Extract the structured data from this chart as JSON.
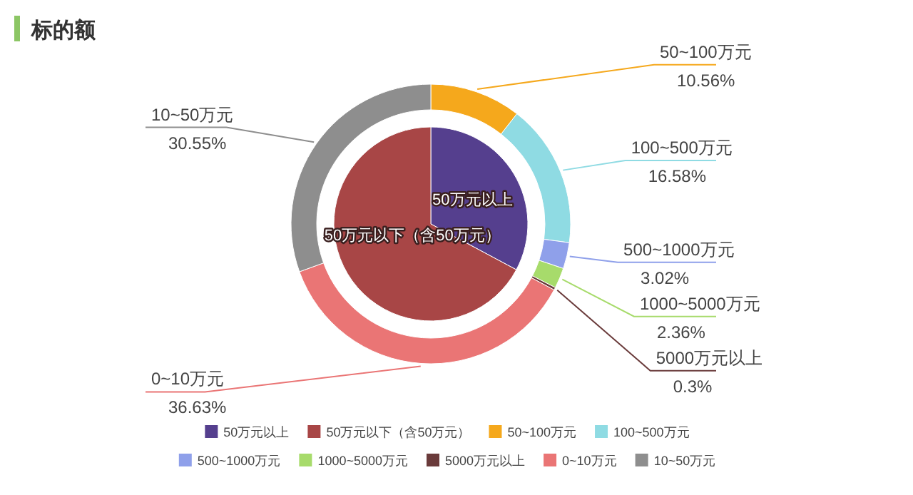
{
  "chart_data": [
    {
      "type": "pie",
      "title": "标的额",
      "legend": "bottom",
      "categories": [
        "50万元以上",
        "50万元以下（含50万元）"
      ],
      "values": [
        32.82,
        67.18
      ],
      "colors": [
        "#553f8e",
        "#a84646"
      ]
    },
    {
      "type": "donut",
      "legend": "bottom",
      "categories": [
        "50~100万元",
        "100~500万元",
        "500~1000万元",
        "1000~5000万元",
        "5000万元以上",
        "0~10万元",
        "10~50万元"
      ],
      "values": [
        10.56,
        16.58,
        3.02,
        2.36,
        0.3,
        36.63,
        30.55
      ],
      "value_labels": [
        "10.56%",
        "16.58%",
        "3.02%",
        "2.36%",
        "0.3%",
        "36.63%",
        "30.55%"
      ],
      "colors": [
        "#f5a81c",
        "#8fdbe3",
        "#8fa0ea",
        "#a7db6b",
        "#6a3b3b",
        "#ea7575",
        "#8e8e8e"
      ]
    }
  ]
}
